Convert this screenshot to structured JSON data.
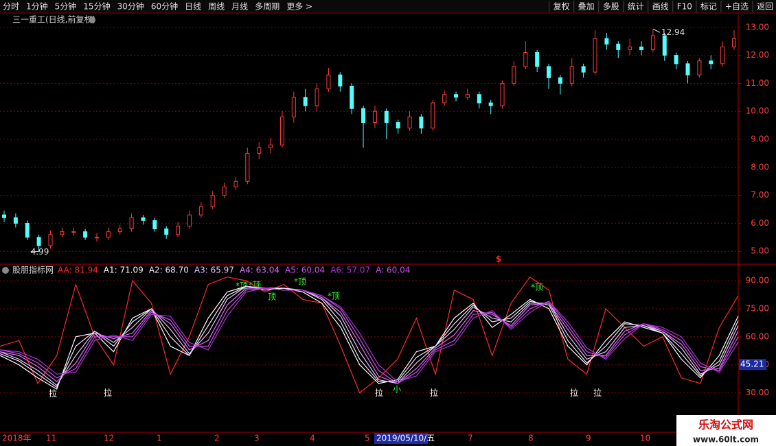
{
  "toolbar": {
    "left": [
      "分时",
      "1分钟",
      "5分钟",
      "15分钟",
      "30分钟",
      "60分钟",
      "日线",
      "周线",
      "月线",
      "多周期",
      "更多 >"
    ],
    "right": [
      "复权",
      "叠加",
      "多股",
      "统计",
      "画线",
      "F10",
      "标记",
      "+自选",
      "返回"
    ]
  },
  "chart_data": [
    {
      "type": "candlestick",
      "title": "三一重工(日线,前复权)",
      "open": [
        6.3,
        6.2,
        6.0,
        5.5,
        5.2,
        5.6,
        5.7,
        5.7,
        5.5,
        5.5,
        5.7,
        5.8,
        6.2,
        6.1,
        5.8,
        5.6,
        5.9,
        6.3,
        6.6,
        7.0,
        7.3,
        7.5,
        8.5,
        8.7,
        8.8,
        9.8,
        10.5,
        10.2,
        10.8,
        11.3,
        10.9,
        10.1,
        9.6,
        10.0,
        9.6,
        9.4,
        9.8,
        9.4,
        10.3,
        10.6,
        10.5,
        10.6,
        10.3,
        10.2,
        11.0,
        11.6,
        12.1,
        11.6,
        11.2,
        11.0,
        11.6,
        11.4,
        12.6,
        12.4,
        12.2,
        12.3,
        12.2,
        12.7,
        12.0,
        11.7,
        11.3,
        11.8,
        11.7,
        12.3
      ],
      "close": [
        6.2,
        6.0,
        5.5,
        5.2,
        5.6,
        5.7,
        5.7,
        5.5,
        5.5,
        5.7,
        5.8,
        6.2,
        6.1,
        5.8,
        5.6,
        5.9,
        6.3,
        6.6,
        7.0,
        7.3,
        7.5,
        8.5,
        8.7,
        8.8,
        9.8,
        10.5,
        10.2,
        10.8,
        11.3,
        10.9,
        10.1,
        9.6,
        10.0,
        9.6,
        9.4,
        9.8,
        9.4,
        10.3,
        10.6,
        10.5,
        10.6,
        10.3,
        10.2,
        11.0,
        11.6,
        12.1,
        11.6,
        11.2,
        11.0,
        11.6,
        11.4,
        12.6,
        12.4,
        12.2,
        12.3,
        12.2,
        12.7,
        12.0,
        11.7,
        11.3,
        11.8,
        11.7,
        12.3,
        12.6
      ],
      "high": [
        6.45,
        6.35,
        6.1,
        5.6,
        5.75,
        5.85,
        5.85,
        5.8,
        5.65,
        5.85,
        5.95,
        6.35,
        6.3,
        6.2,
        5.9,
        6.05,
        6.45,
        6.75,
        7.15,
        7.45,
        7.65,
        8.7,
        8.9,
        9.05,
        10.0,
        10.7,
        10.8,
        11.0,
        11.55,
        11.4,
        11.0,
        10.2,
        10.2,
        10.1,
        9.7,
        10.0,
        9.9,
        10.4,
        10.75,
        10.7,
        10.8,
        10.7,
        10.4,
        11.1,
        11.8,
        12.5,
        12.2,
        11.7,
        11.3,
        11.9,
        11.7,
        12.9,
        12.8,
        12.5,
        12.6,
        12.5,
        12.94,
        12.8,
        12.1,
        11.8,
        11.9,
        12.0,
        12.5,
        12.9
      ],
      "low": [
        6.05,
        5.85,
        5.4,
        4.99,
        5.1,
        5.5,
        5.55,
        5.4,
        5.35,
        5.4,
        5.6,
        5.7,
        5.95,
        5.7,
        5.45,
        5.5,
        5.8,
        6.2,
        6.5,
        6.9,
        7.2,
        7.4,
        8.3,
        8.5,
        8.7,
        9.6,
        10.0,
        10.0,
        10.7,
        10.7,
        9.9,
        8.7,
        9.4,
        9.0,
        9.2,
        9.3,
        9.2,
        9.3,
        10.2,
        10.35,
        10.4,
        10.1,
        9.9,
        10.1,
        10.9,
        11.5,
        11.4,
        10.8,
        10.6,
        10.9,
        11.2,
        11.3,
        12.2,
        11.9,
        12.0,
        12.0,
        12.1,
        11.8,
        11.5,
        11.0,
        11.2,
        11.5,
        11.6,
        12.2
      ],
      "up_color": "#ff3c3c",
      "down_color": "#54fcfc",
      "ylim": [
        4.54,
        13.51
      ],
      "yticks": [
        {
          "value": 5,
          "label": "5.00"
        },
        {
          "value": 6,
          "label": "6.00"
        },
        {
          "value": 7,
          "label": "7.00"
        },
        {
          "value": 8,
          "label": "8.00"
        },
        {
          "value": 9,
          "label": "9.00"
        },
        {
          "value": 10,
          "label": "10.00"
        },
        {
          "value": 11,
          "label": "11.00"
        },
        {
          "value": 12,
          "label": "12.00"
        },
        {
          "value": 13,
          "label": "13.00"
        }
      ],
      "grid": true,
      "high_label": "12.94",
      "low_label": "4.99",
      "marker": "$"
    },
    {
      "type": "line",
      "title": "股朋指标网",
      "series": [
        {
          "name": "AA: 81.94",
          "color": "#ff2a2a",
          "values": [
            55,
            58,
            35,
            50,
            88,
            60,
            45,
            90,
            78,
            40,
            60,
            88,
            92,
            90,
            84,
            88,
            80,
            78,
            55,
            30,
            38,
            48,
            70,
            40,
            85,
            80,
            50,
            78,
            92,
            85,
            48,
            40,
            75,
            65,
            55,
            60,
            38,
            35,
            65,
            81.94
          ]
        },
        {
          "name": "A1: 71.09",
          "color": "#ffffff",
          "values": [
            50,
            45,
            38,
            32,
            60,
            62,
            52,
            70,
            75,
            55,
            50,
            70,
            84,
            87,
            85,
            86,
            84,
            78,
            65,
            45,
            35,
            37,
            52,
            55,
            70,
            78,
            65,
            72,
            80,
            75,
            55,
            45,
            58,
            68,
            65,
            62,
            48,
            38,
            50,
            71.09
          ]
        },
        {
          "name": "A2: 68.70",
          "color": "#f4e4ff",
          "values": [
            51,
            47,
            40,
            33,
            55,
            63,
            55,
            68,
            75,
            60,
            50,
            66,
            82,
            87,
            86,
            86,
            85,
            80,
            68,
            48,
            36,
            36,
            49,
            55,
            67,
            77,
            68,
            70,
            79,
            77,
            58,
            46,
            55,
            67,
            66,
            62,
            51,
            39,
            47,
            68.7
          ]
        },
        {
          "name": "A3: 65.97",
          "color": "#e8c8ff",
          "values": [
            52,
            48,
            42,
            34,
            50,
            63,
            57,
            65,
            75,
            64,
            51,
            62,
            80,
            87,
            86,
            85,
            85,
            81,
            71,
            52,
            37,
            35,
            46,
            55,
            64,
            76,
            70,
            68,
            78,
            78,
            61,
            48,
            52,
            65,
            66,
            63,
            54,
            40,
            45,
            65.97
          ]
        },
        {
          "name": "A4: 63.04",
          "color": "#e070ff",
          "values": [
            52,
            50,
            44,
            36,
            46,
            62,
            59,
            62,
            74,
            67,
            53,
            58,
            77,
            86,
            86,
            85,
            85,
            81,
            73,
            56,
            39,
            35,
            43,
            54,
            61,
            74,
            72,
            66,
            77,
            78,
            64,
            50,
            50,
            63,
            67,
            63,
            56,
            42,
            43,
            63.04
          ]
        },
        {
          "name": "A5: 60.04",
          "color": "#cc50f0",
          "values": [
            53,
            51,
            46,
            38,
            43,
            60,
            60,
            60,
            73,
            69,
            55,
            55,
            74,
            85,
            86,
            85,
            85,
            82,
            75,
            59,
            42,
            35,
            41,
            53,
            58,
            72,
            73,
            65,
            75,
            79,
            66,
            52,
            49,
            61,
            67,
            64,
            58,
            44,
            42,
            60.04
          ]
        },
        {
          "name": "A6: 57.07",
          "color": "#b030d8",
          "values": [
            53,
            52,
            48,
            40,
            41,
            58,
            61,
            58,
            72,
            71,
            57,
            53,
            71,
            84,
            86,
            85,
            85,
            82,
            76,
            62,
            45,
            36,
            39,
            52,
            56,
            70,
            74,
            64,
            73,
            79,
            68,
            54,
            48,
            59,
            67,
            65,
            60,
            46,
            41,
            57.07
          ]
        }
      ],
      "legend_extra": "A: 60.04",
      "ylim": [
        8.9,
        98.5
      ],
      "yticks": [
        {
          "value": 30,
          "label": "30.00"
        },
        {
          "value": 45,
          "label": "45.00"
        },
        {
          "value": 60,
          "label": "60.00"
        },
        {
          "value": 75,
          "label": "75.00"
        },
        {
          "value": 90,
          "label": "90.00"
        }
      ],
      "grid": true,
      "cursor_value": 45.21,
      "annotations": [
        "*顶",
        "*顶",
        "顶",
        "*顶",
        "*顶",
        "*顶",
        "拉",
        "拉",
        "拉",
        "拉",
        "拉",
        "拉",
        "小"
      ]
    }
  ],
  "date_axis": {
    "labels": [
      "2018年",
      "11",
      "12",
      "1",
      "2",
      "3",
      "4",
      "5",
      "7",
      "8",
      "9",
      "10"
    ],
    "cursor": "2019/05/10/五"
  },
  "watermark": {
    "name": "乐淘公式网",
    "url": "www.60lt.com"
  }
}
